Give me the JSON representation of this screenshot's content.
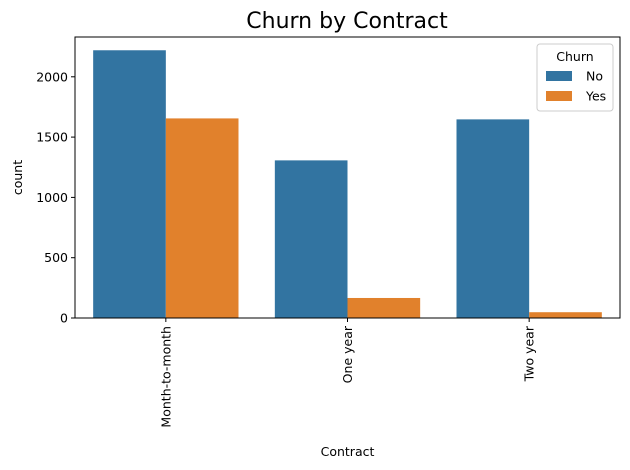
{
  "chart_data": {
    "type": "bar",
    "title": "Churn by Contract",
    "xlabel": "Contract",
    "ylabel": "count",
    "categories": [
      "Month-to-month",
      "One year",
      "Two year"
    ],
    "series": [
      {
        "name": "No",
        "values": [
          2220,
          1307,
          1647
        ],
        "color": "#3274a1"
      },
      {
        "name": "Yes",
        "values": [
          1655,
          166,
          48
        ],
        "color": "#e1812c"
      }
    ],
    "ylim": [
      0,
      2330
    ],
    "yticks": [
      0,
      500,
      1000,
      1500,
      2000
    ],
    "legend": {
      "title": "Churn",
      "placement": "top-right"
    },
    "grid": false
  }
}
